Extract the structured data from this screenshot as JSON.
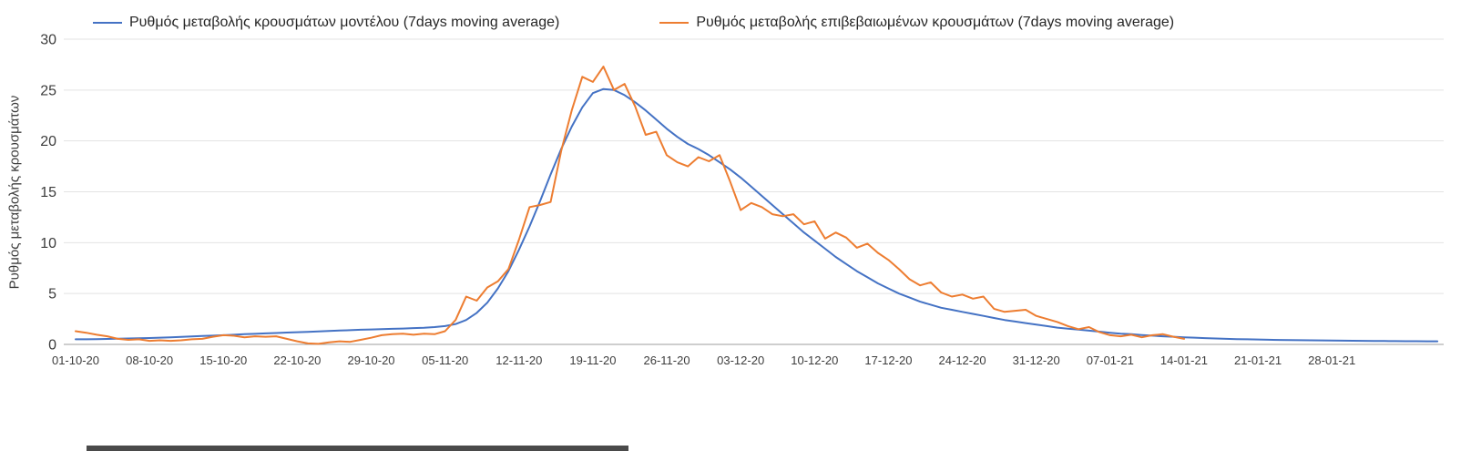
{
  "page": {
    "background": "#ffffff",
    "text_color": "#3c3c3c"
  },
  "chart_data": {
    "type": "line",
    "title": "",
    "xlabel": "",
    "ylabel": "Ρυθμός μεταβολής κρουσμάτων",
    "ylim": [
      0,
      30
    ],
    "y_ticks": [
      0,
      5,
      10,
      15,
      20,
      25,
      30
    ],
    "x_tick_interval_days": 7,
    "x_tick_labels": [
      "01-10-20",
      "08-10-20",
      "15-10-20",
      "22-10-20",
      "29-10-20",
      "05-11-20",
      "12-11-20",
      "19-11-20",
      "26-11-20",
      "03-12-20",
      "10-12-20",
      "17-12-20",
      "24-12-20",
      "31-12-20",
      "07-01-21",
      "14-01-21",
      "21-01-21",
      "28-01-21"
    ],
    "grid": "horizontal",
    "gridline_color": "#e3e3e3",
    "axis_color": "#9e9e9e",
    "tick_text_color": "#3c3c3c",
    "legend_position": "top",
    "series": [
      {
        "name": "Ρυθμός μεταβολής κρουσμάτων μοντέλου (7days moving average)",
        "color": "#4472C4",
        "values": [
          0.5,
          0.5,
          0.52,
          0.54,
          0.56,
          0.58,
          0.6,
          0.63,
          0.66,
          0.7,
          0.74,
          0.78,
          0.82,
          0.86,
          0.9,
          0.95,
          1.0,
          1.04,
          1.08,
          1.12,
          1.16,
          1.2,
          1.24,
          1.28,
          1.32,
          1.36,
          1.4,
          1.44,
          1.47,
          1.5,
          1.53,
          1.56,
          1.6,
          1.64,
          1.7,
          1.8,
          2.0,
          2.4,
          3.1,
          4.1,
          5.5,
          7.2,
          9.3,
          11.6,
          14.1,
          16.7,
          19.2,
          21.4,
          23.3,
          24.7,
          25.1,
          25.0,
          24.5,
          23.8,
          23.0,
          22.1,
          21.2,
          20.4,
          19.7,
          19.2,
          18.6,
          17.9,
          17.2,
          16.4,
          15.5,
          14.6,
          13.7,
          12.8,
          11.9,
          11.0,
          10.2,
          9.4,
          8.6,
          7.9,
          7.2,
          6.6,
          6.0,
          5.5,
          5.0,
          4.6,
          4.2,
          3.9,
          3.6,
          3.4,
          3.2,
          3.0,
          2.8,
          2.6,
          2.4,
          2.25,
          2.1,
          1.95,
          1.8,
          1.65,
          1.55,
          1.45,
          1.35,
          1.25,
          1.15,
          1.05,
          1.0,
          0.92,
          0.86,
          0.8,
          0.75,
          0.7,
          0.66,
          0.62,
          0.58,
          0.55,
          0.52,
          0.5,
          0.48,
          0.46,
          0.44,
          0.42,
          0.41,
          0.4,
          0.39,
          0.38,
          0.37,
          0.36,
          0.35,
          0.34,
          0.33,
          0.32,
          0.31,
          0.31,
          0.3,
          0.3
        ]
      },
      {
        "name": "Ρυθμός μεταβολής επιβεβαιωμένων κρουσμάτων (7days moving average)",
        "color": "#ED7D31",
        "values": [
          1.3,
          1.15,
          0.95,
          0.8,
          0.55,
          0.45,
          0.5,
          0.35,
          0.4,
          0.35,
          0.4,
          0.5,
          0.55,
          0.75,
          0.9,
          0.85,
          0.7,
          0.8,
          0.75,
          0.8,
          0.55,
          0.3,
          0.1,
          0.05,
          0.2,
          0.3,
          0.25,
          0.45,
          0.65,
          0.9,
          1.0,
          1.05,
          0.95,
          1.05,
          1.0,
          1.3,
          2.4,
          4.7,
          4.3,
          5.6,
          6.2,
          7.4,
          10.3,
          13.5,
          13.7,
          14.0,
          19.0,
          23.0,
          26.3,
          25.8,
          27.3,
          25.0,
          25.6,
          23.4,
          20.6,
          20.9,
          18.6,
          17.9,
          17.5,
          18.4,
          18.0,
          18.6,
          16.0,
          13.2,
          13.9,
          13.5,
          12.8,
          12.6,
          12.8,
          11.8,
          12.1,
          10.4,
          11.0,
          10.5,
          9.5,
          9.9,
          9.0,
          8.3,
          7.4,
          6.4,
          5.8,
          6.1,
          5.1,
          4.7,
          4.9,
          4.5,
          4.7,
          3.5,
          3.2,
          3.3,
          3.4,
          2.8,
          2.5,
          2.2,
          1.8,
          1.5,
          1.7,
          1.2,
          0.9,
          0.8,
          0.95,
          0.7,
          0.9,
          1.0,
          0.75,
          0.55
        ]
      }
    ]
  }
}
